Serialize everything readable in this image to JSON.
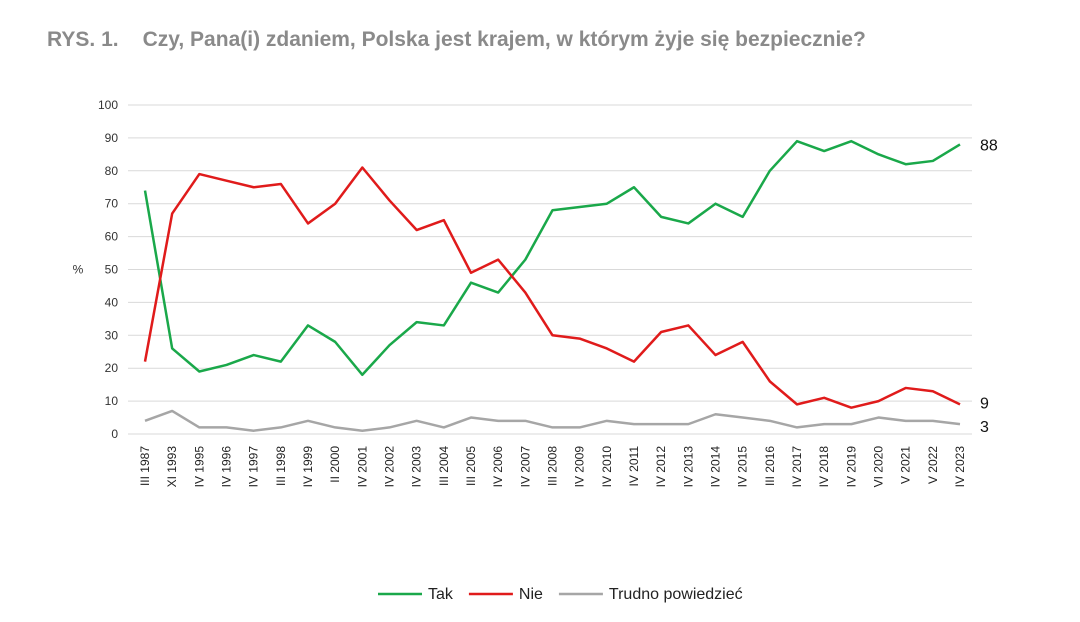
{
  "title_prefix": "RYS. 1.",
  "title": "Czy, Pana(i) zdaniem, Polska jest krajem, w którym żyje się bezpiecznie?",
  "chart_data": {
    "type": "line",
    "title": "Czy, Pana(i) zdaniem, Polska jest krajem, w którym żyje się bezpiecznie?",
    "ylabel": "%",
    "ylim": [
      0,
      100
    ],
    "yticks": [
      0,
      10,
      20,
      30,
      40,
      50,
      60,
      70,
      80,
      90,
      100
    ],
    "grid": true,
    "legend": "bottom",
    "categories": [
      "III 1987",
      "XI 1993",
      "IV 1995",
      "IV 1996",
      "IV 1997",
      "III 1998",
      "IV 1999",
      "II 2000",
      "IV 2001",
      "IV 2002",
      "IV 2003",
      "III 2004",
      "III 2005",
      "IV 2006",
      "IV 2007",
      "III 2008",
      "IV 2009",
      "IV 2010",
      "IV 2011",
      "IV 2012",
      "IV 2013",
      "IV 2014",
      "IV 2015",
      "III 2016",
      "IV 2017",
      "IV 2018",
      "IV 2019",
      "VI 2020",
      "V 2021",
      "V 2022",
      "IV 2023"
    ],
    "series": [
      {
        "name": "Tak",
        "color": "#1aa84a",
        "values": [
          74,
          26,
          19,
          21,
          24,
          22,
          33,
          28,
          18,
          27,
          34,
          33,
          46,
          43,
          53,
          68,
          69,
          70,
          75,
          66,
          64,
          70,
          66,
          80,
          89,
          86,
          89,
          85,
          82,
          83,
          88
        ],
        "end_label": "88"
      },
      {
        "name": "Nie",
        "color": "#e01b1b",
        "values": [
          22,
          67,
          79,
          77,
          75,
          76,
          64,
          70,
          81,
          71,
          62,
          65,
          49,
          53,
          43,
          30,
          29,
          26,
          22,
          31,
          33,
          24,
          28,
          16,
          9,
          11,
          8,
          10,
          14,
          13,
          9
        ],
        "end_label": "9"
      },
      {
        "name": "Trudno powiedzieć",
        "color": "#a6a6a6",
        "values": [
          4,
          7,
          2,
          2,
          1,
          2,
          4,
          2,
          1,
          2,
          4,
          2,
          5,
          4,
          4,
          2,
          2,
          4,
          3,
          3,
          3,
          6,
          5,
          4,
          2,
          3,
          3,
          5,
          4,
          4,
          3
        ],
        "end_label": "3"
      }
    ]
  }
}
